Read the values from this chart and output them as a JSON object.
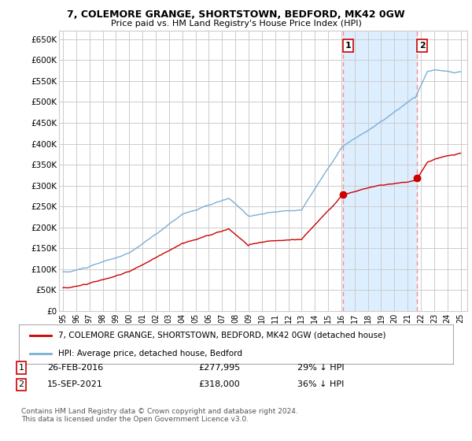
{
  "title": "7, COLEMORE GRANGE, SHORTSTOWN, BEDFORD, MK42 0GW",
  "subtitle": "Price paid vs. HM Land Registry's House Price Index (HPI)",
  "ylim": [
    0,
    670000
  ],
  "yticks": [
    0,
    50000,
    100000,
    150000,
    200000,
    250000,
    300000,
    350000,
    400000,
    450000,
    500000,
    550000,
    600000,
    650000
  ],
  "ytick_labels": [
    "£0",
    "£50K",
    "£100K",
    "£150K",
    "£200K",
    "£250K",
    "£300K",
    "£350K",
    "£400K",
    "£450K",
    "£500K",
    "£550K",
    "£600K",
    "£650K"
  ],
  "hpi_color": "#7bafd4",
  "price_color": "#cc0000",
  "purchase1_date": 2016.12,
  "purchase1_price": 277995,
  "purchase1_label": "1",
  "purchase2_date": 2021.71,
  "purchase2_price": 318000,
  "purchase2_label": "2",
  "legend_property": "7, COLEMORE GRANGE, SHORTSTOWN, BEDFORD, MK42 0GW (detached house)",
  "legend_hpi": "HPI: Average price, detached house, Bedford",
  "footer": "Contains HM Land Registry data © Crown copyright and database right 2024.\nThis data is licensed under the Open Government Licence v3.0.",
  "background_color": "#ffffff",
  "grid_color": "#cccccc",
  "shade_color": "#ddeeff",
  "vline_color": "#ff8888"
}
